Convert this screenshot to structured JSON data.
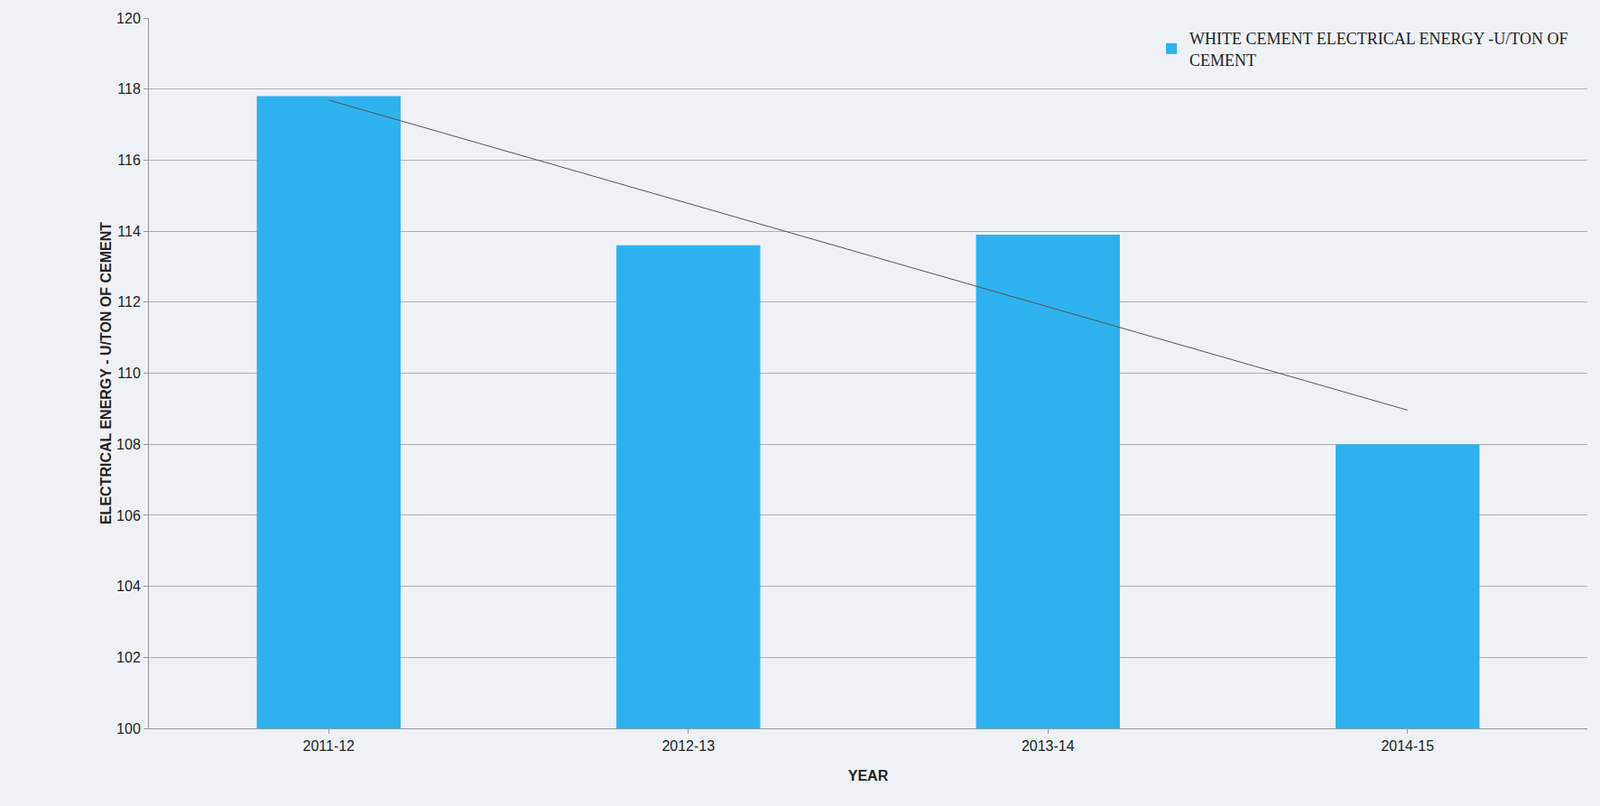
{
  "chart_data": {
    "type": "bar",
    "x_label": "YEAR",
    "y_label": "ELECTRICAL ENERGY - U/TON OF CEMENT",
    "categories": [
      "2011-12",
      "2012-13",
      "2013-14",
      "2014-15"
    ],
    "series": [
      {
        "name": "WHITE CEMENT ELECTRICAL ENERGY -U/TON OF CEMENT",
        "color": "#2eb2ee",
        "values": [
          117.8,
          113.6,
          113.9,
          108.0
        ]
      }
    ],
    "ylim": [
      100,
      120
    ],
    "yticks": [
      100,
      102,
      104,
      106,
      108,
      110,
      112,
      114,
      116,
      118,
      120
    ],
    "grid": true,
    "legend": "top-right"
  }
}
